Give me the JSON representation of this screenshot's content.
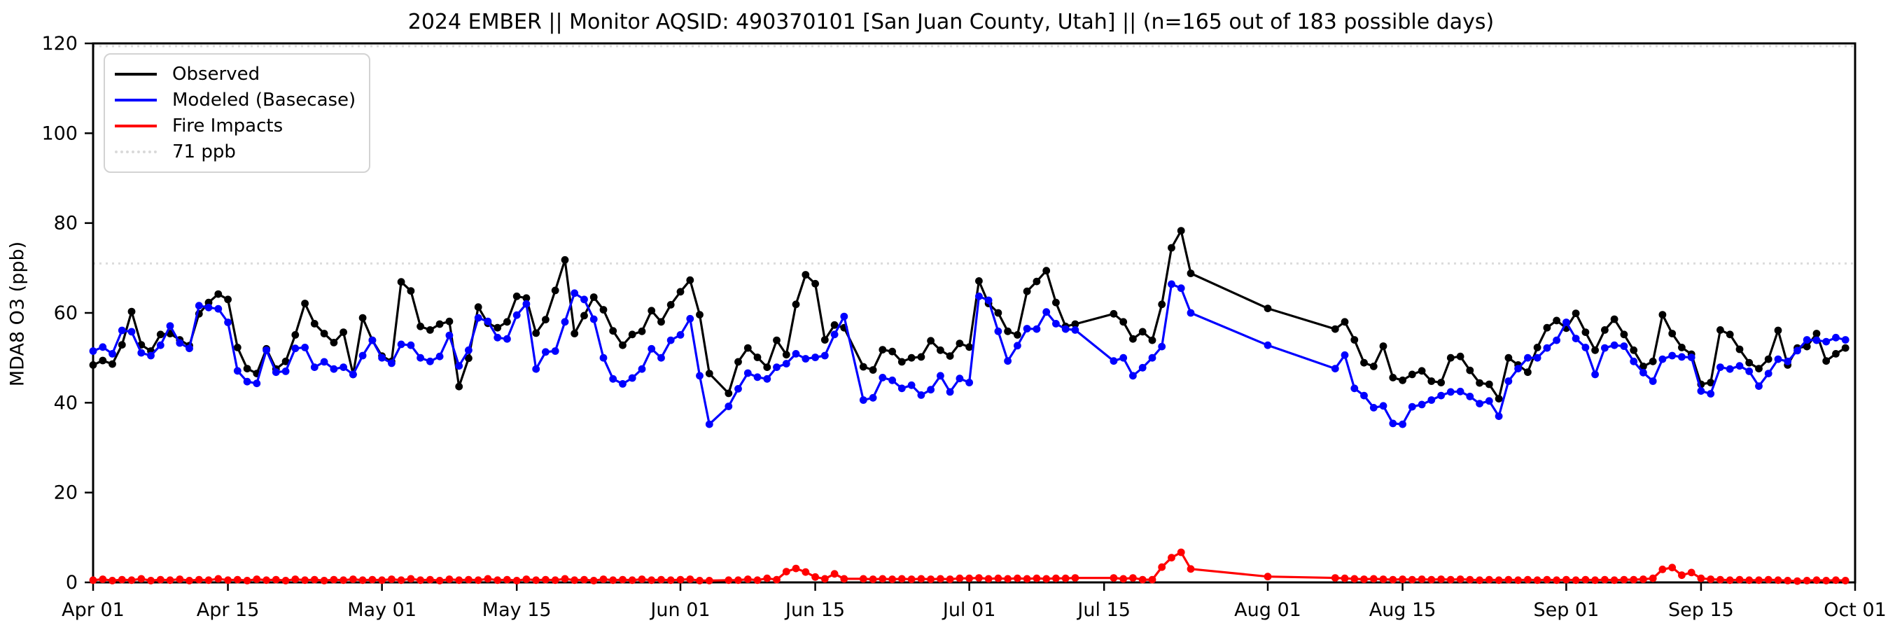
{
  "header": {
    "title": "2024 EMBER || Monitor AQSID: 490370101 [San Juan County, Utah] || (n=165 out of 183 possible days)"
  },
  "axes": {
    "ylabel": "MDA8 O3 (ppb)",
    "yticks": [
      0,
      20,
      40,
      60,
      80,
      100,
      120
    ],
    "ylim": [
      0,
      120
    ],
    "xtick_labels": [
      "Apr 01",
      "Apr 15",
      "May 01",
      "May 15",
      "Jun 01",
      "Jun 15",
      "Jul 01",
      "Jul 15",
      "Aug 01",
      "Aug 15",
      "Sep 01",
      "Sep 15",
      "Oct 01"
    ],
    "xtick_days": [
      0,
      14,
      30,
      44,
      61,
      75,
      91,
      105,
      122,
      136,
      153,
      167,
      183
    ],
    "grid": false
  },
  "legend": {
    "entries": [
      {
        "label": "Observed",
        "color": "#000000",
        "style": "solid"
      },
      {
        "label": "Modeled (Basecase)",
        "color": "#0000ff",
        "style": "solid"
      },
      {
        "label": "Fire Impacts",
        "color": "#ff0000",
        "style": "solid"
      },
      {
        "label": "71 ppb",
        "color": "#d9d9d9",
        "style": "dotted"
      }
    ],
    "position": "upper-left"
  },
  "colors": {
    "observed": "#000000",
    "modeled": "#0000ff",
    "fire": "#ff0000",
    "threshold": "#dcdcdc",
    "axis": "#000000"
  },
  "chart_data": {
    "type": "line",
    "title": "2024 EMBER || Monitor AQSID: 490370101 [San Juan County, Utah] || (n=165 out of 183 possible days)",
    "xlabel": "",
    "ylabel": "MDA8 O3 (ppb)",
    "ylim": [
      0,
      120
    ],
    "threshold_ppb": 71,
    "top_dotted_line_ppb": 120,
    "n_observed_days": 165,
    "n_possible_days": 183,
    "legend_entries": [
      "Observed",
      "Modeled (Basecase)",
      "Fire Impacts",
      "71 ppb"
    ],
    "dates": [
      "Apr 01",
      "Apr 02",
      "Apr 03",
      "Apr 04",
      "Apr 05",
      "Apr 06",
      "Apr 07",
      "Apr 08",
      "Apr 09",
      "Apr 10",
      "Apr 11",
      "Apr 12",
      "Apr 13",
      "Apr 14",
      "Apr 15",
      "Apr 16",
      "Apr 17",
      "Apr 18",
      "Apr 19",
      "Apr 20",
      "Apr 21",
      "Apr 22",
      "Apr 23",
      "Apr 24",
      "Apr 25",
      "Apr 26",
      "Apr 27",
      "Apr 28",
      "Apr 29",
      "Apr 30",
      "May 01",
      "May 02",
      "May 03",
      "May 04",
      "May 05",
      "May 06",
      "May 07",
      "May 08",
      "May 09",
      "May 10",
      "May 11",
      "May 12",
      "May 13",
      "May 14",
      "May 15",
      "May 16",
      "May 17",
      "May 18",
      "May 19",
      "May 20",
      "May 21",
      "May 22",
      "May 23",
      "May 24",
      "May 25",
      "May 26",
      "May 27",
      "May 28",
      "May 29",
      "May 30",
      "May 31",
      "Jun 01",
      "Jun 02",
      "Jun 03",
      "Jun 04",
      "Jun 05",
      "Jun 06",
      "Jun 07",
      "Jun 08",
      "Jun 09",
      "Jun 10",
      "Jun 11",
      "Jun 12",
      "Jun 13",
      "Jun 14",
      "Jun 15",
      "Jun 16",
      "Jun 17",
      "Jun 18",
      "Jun 19",
      "Jun 20",
      "Jun 21",
      "Jun 22",
      "Jun 23",
      "Jun 24",
      "Jun 25",
      "Jun 26",
      "Jun 27",
      "Jun 28",
      "Jun 29",
      "Jun 30",
      "Jul 01",
      "Jul 02",
      "Jul 03",
      "Jul 04",
      "Jul 05",
      "Jul 06",
      "Jul 07",
      "Jul 08",
      "Jul 09",
      "Jul 10",
      "Jul 11",
      "Jul 12",
      "Jul 13",
      "Jul 14",
      "Jul 15",
      "Jul 16",
      "Jul 17",
      "Jul 18",
      "Jul 19",
      "Jul 20",
      "Jul 21",
      "Jul 22",
      "Jul 23",
      "Jul 24",
      "Jul 25",
      "Jul 26",
      "Jul 27",
      "Jul 28",
      "Jul 29",
      "Jul 30",
      "Jul 31",
      "Aug 01",
      "Aug 02",
      "Aug 03",
      "Aug 04",
      "Aug 05",
      "Aug 06",
      "Aug 07",
      "Aug 08",
      "Aug 09",
      "Aug 10",
      "Aug 11",
      "Aug 12",
      "Aug 13",
      "Aug 14",
      "Aug 15",
      "Aug 16",
      "Aug 17",
      "Aug 18",
      "Aug 19",
      "Aug 20",
      "Aug 21",
      "Aug 22",
      "Aug 23",
      "Aug 24",
      "Aug 25",
      "Aug 26",
      "Aug 27",
      "Aug 28",
      "Aug 29",
      "Aug 30",
      "Aug 31",
      "Sep 01",
      "Sep 02",
      "Sep 03",
      "Sep 04",
      "Sep 05",
      "Sep 06",
      "Sep 07",
      "Sep 08",
      "Sep 09",
      "Sep 10",
      "Sep 11",
      "Sep 12",
      "Sep 13",
      "Sep 14",
      "Sep 15",
      "Sep 16",
      "Sep 17",
      "Sep 18",
      "Sep 19",
      "Sep 20",
      "Sep 21",
      "Sep 22",
      "Sep 23",
      "Sep 24",
      "Sep 25",
      "Sep 26",
      "Sep 27",
      "Sep 28",
      "Sep 29",
      "Sep 30"
    ],
    "series": [
      {
        "name": "Observed",
        "color": "#000000",
        "values": [
          48.4,
          49.4,
          48.6,
          52.9,
          60.3,
          52.9,
          51.5,
          55.2,
          55.4,
          54.0,
          52.7,
          59.8,
          62.3,
          64.2,
          63.0,
          52.3,
          47.6,
          46.5,
          52.0,
          47.5,
          49.2,
          55.1,
          62.1,
          57.6,
          55.4,
          53.4,
          55.7,
          46.3,
          58.9,
          53.9,
          50.4,
          49.2,
          66.9,
          64.9,
          57.0,
          56.2,
          57.5,
          58.1,
          43.6,
          49.9,
          61.3,
          57.7,
          56.7,
          58.0,
          63.7,
          63.3,
          55.5,
          58.5,
          65.0,
          71.8,
          55.4,
          59.4,
          63.5,
          60.7,
          56.0,
          52.8,
          55.2,
          55.9,
          60.5,
          58.0,
          61.8,
          64.7,
          67.3,
          59.6,
          46.5,
          null,
          42.1,
          49.1,
          52.2,
          50.1,
          47.9,
          53.9,
          50.7,
          61.9,
          68.5,
          66.5,
          54.0,
          57.3,
          56.7,
          null,
          48.0,
          47.3,
          51.8,
          51.4,
          49.1,
          50.0,
          50.2,
          53.8,
          51.7,
          50.4,
          53.2,
          52.4,
          67.1,
          62.1,
          60.0,
          55.9,
          55.1,
          64.8,
          67.0,
          69.4,
          62.3,
          57.0,
          57.5,
          null,
          null,
          null,
          59.8,
          58.0,
          54.2,
          55.8,
          53.9,
          61.9,
          74.5,
          78.3,
          68.8,
          null,
          null,
          null,
          null,
          null,
          null,
          null,
          61.0,
          null,
          null,
          null,
          null,
          null,
          null,
          56.4,
          58.0,
          54.0,
          48.9,
          48.1,
          52.6,
          45.6,
          45.0,
          46.3,
          47.1,
          44.8,
          44.5,
          50.0,
          50.3,
          47.2,
          44.4,
          44.1,
          40.9,
          50.0,
          48.4,
          46.8,
          52.3,
          56.7,
          58.3,
          56.6,
          59.9,
          55.7,
          51.7,
          56.2,
          58.6,
          55.2,
          51.7,
          48.1,
          49.2,
          59.6,
          55.4,
          52.3,
          50.8,
          44.1,
          44.5,
          56.2,
          55.2,
          51.9,
          48.9,
          47.6,
          49.7,
          56.1,
          48.4,
          52.2,
          52.5,
          55.4,
          49.3,
          50.9,
          52.2
        ]
      },
      {
        "name": "Modeled (Basecase)",
        "color": "#0000ff",
        "values": [
          51.5,
          52.4,
          50.9,
          56.1,
          55.8,
          51.1,
          50.5,
          52.8,
          57.1,
          53.3,
          52.1,
          61.6,
          61.2,
          60.9,
          57.9,
          47.1,
          44.7,
          44.3,
          51.7,
          46.8,
          47.0,
          52.1,
          52.3,
          47.9,
          49.1,
          47.5,
          47.9,
          46.3,
          50.5,
          53.9,
          50.0,
          48.8,
          53.0,
          52.8,
          50.0,
          49.2,
          50.3,
          55.0,
          48.2,
          51.7,
          58.9,
          58.1,
          54.5,
          54.2,
          59.5,
          62.0,
          47.5,
          51.3,
          51.5,
          58.0,
          64.4,
          63.0,
          58.6,
          50.0,
          45.3,
          44.2,
          45.5,
          47.5,
          52.0,
          50.0,
          53.9,
          55.1,
          58.7,
          46.0,
          35.2,
          null,
          39.2,
          43.1,
          46.6,
          45.7,
          45.3,
          47.9,
          48.7,
          50.9,
          49.8,
          50.1,
          50.5,
          55.2,
          59.2,
          null,
          40.6,
          41.1,
          45.6,
          45.0,
          43.2,
          43.9,
          41.7,
          42.9,
          46.0,
          42.4,
          45.4,
          44.5,
          63.7,
          62.8,
          55.9,
          49.3,
          52.7,
          56.5,
          56.4,
          60.2,
          57.6,
          56.4,
          56.2,
          null,
          null,
          null,
          49.3,
          50.0,
          46.0,
          47.8,
          50.0,
          52.5,
          66.4,
          65.5,
          60.0,
          null,
          null,
          null,
          null,
          null,
          null,
          null,
          52.8,
          null,
          null,
          null,
          null,
          null,
          null,
          47.6,
          50.6,
          43.2,
          41.6,
          38.9,
          39.3,
          35.4,
          35.2,
          39.1,
          39.6,
          40.6,
          41.6,
          42.4,
          42.5,
          41.4,
          39.8,
          40.4,
          37.0,
          44.8,
          47.6,
          50.0,
          50.0,
          52.2,
          53.9,
          57.9,
          54.3,
          52.3,
          46.3,
          52.2,
          52.8,
          52.6,
          49.2,
          46.7,
          44.8,
          49.7,
          50.5,
          50.2,
          50.1,
          42.6,
          42.0,
          47.9,
          47.5,
          48.2,
          47.0,
          43.7,
          46.5,
          49.7,
          49.2,
          51.6,
          54.0,
          53.9,
          53.6,
          54.5,
          54.0
        ]
      },
      {
        "name": "Fire Impacts",
        "color": "#ff0000",
        "values": [
          0.5,
          0.7,
          0.4,
          0.6,
          0.5,
          0.8,
          0.4,
          0.6,
          0.5,
          0.7,
          0.4,
          0.6,
          0.5,
          0.8,
          0.5,
          0.6,
          0.4,
          0.7,
          0.5,
          0.6,
          0.4,
          0.7,
          0.5,
          0.6,
          0.4,
          0.6,
          0.5,
          0.7,
          0.5,
          0.6,
          0.5,
          0.7,
          0.5,
          0.8,
          0.5,
          0.6,
          0.4,
          0.7,
          0.5,
          0.6,
          0.5,
          0.8,
          0.5,
          0.6,
          0.4,
          0.7,
          0.5,
          0.6,
          0.5,
          0.8,
          0.5,
          0.6,
          0.4,
          0.7,
          0.5,
          0.6,
          0.5,
          0.7,
          0.5,
          0.6,
          0.5,
          0.6,
          0.7,
          0.4,
          0.4,
          null,
          0.5,
          0.5,
          0.7,
          0.5,
          0.9,
          0.6,
          2.4,
          3.1,
          2.3,
          1.2,
          0.8,
          1.9,
          0.8,
          null,
          0.8,
          0.7,
          0.8,
          0.7,
          0.8,
          0.7,
          0.8,
          0.7,
          0.8,
          0.7,
          0.9,
          0.9,
          1.0,
          0.8,
          0.9,
          0.8,
          0.9,
          0.8,
          0.9,
          0.8,
          0.9,
          0.9,
          1.0,
          null,
          null,
          null,
          1.0,
          0.8,
          1.0,
          0.6,
          0.6,
          3.4,
          5.5,
          6.7,
          3.0,
          null,
          null,
          null,
          null,
          null,
          null,
          null,
          1.3,
          null,
          null,
          null,
          null,
          null,
          null,
          1.0,
          0.9,
          0.8,
          0.7,
          0.8,
          0.7,
          0.6,
          0.7,
          0.6,
          0.7,
          0.6,
          0.7,
          0.6,
          0.7,
          0.6,
          0.5,
          0.6,
          0.5,
          0.6,
          0.5,
          0.6,
          0.5,
          0.6,
          0.5,
          0.6,
          0.5,
          0.6,
          0.5,
          0.6,
          0.5,
          0.6,
          0.6,
          0.7,
          0.9,
          2.9,
          3.3,
          1.6,
          2.2,
          0.9,
          0.7,
          0.6,
          0.5,
          0.6,
          0.5,
          0.5,
          0.6,
          0.5,
          0.4,
          0.3,
          0.4,
          0.5,
          0.4,
          0.5,
          0.4
        ]
      }
    ]
  }
}
